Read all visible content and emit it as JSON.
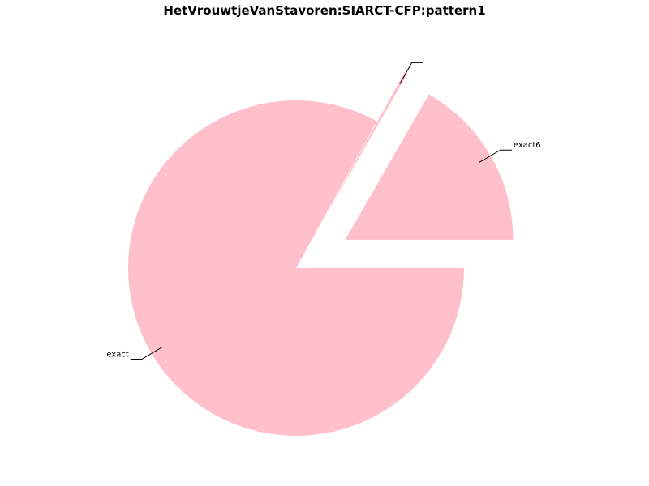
{
  "chart_data": {
    "type": "pie",
    "title": "HetVrouwtjeVanStavoren:SIARCT-CFP:pattern1",
    "slices": [
      {
        "label": "exact6",
        "value": 16.7
      },
      {
        "label": "",
        "value": 0.3
      },
      {
        "label": "exact",
        "value": 83.0
      }
    ],
    "colors": {
      "slice": "#ffc0cb",
      "leader": "#000000",
      "background": "#ffffff"
    },
    "start_angle_deg": 0,
    "direction": "counterclockwise",
    "exploded": [
      true,
      true,
      false
    ],
    "legend": "none"
  }
}
